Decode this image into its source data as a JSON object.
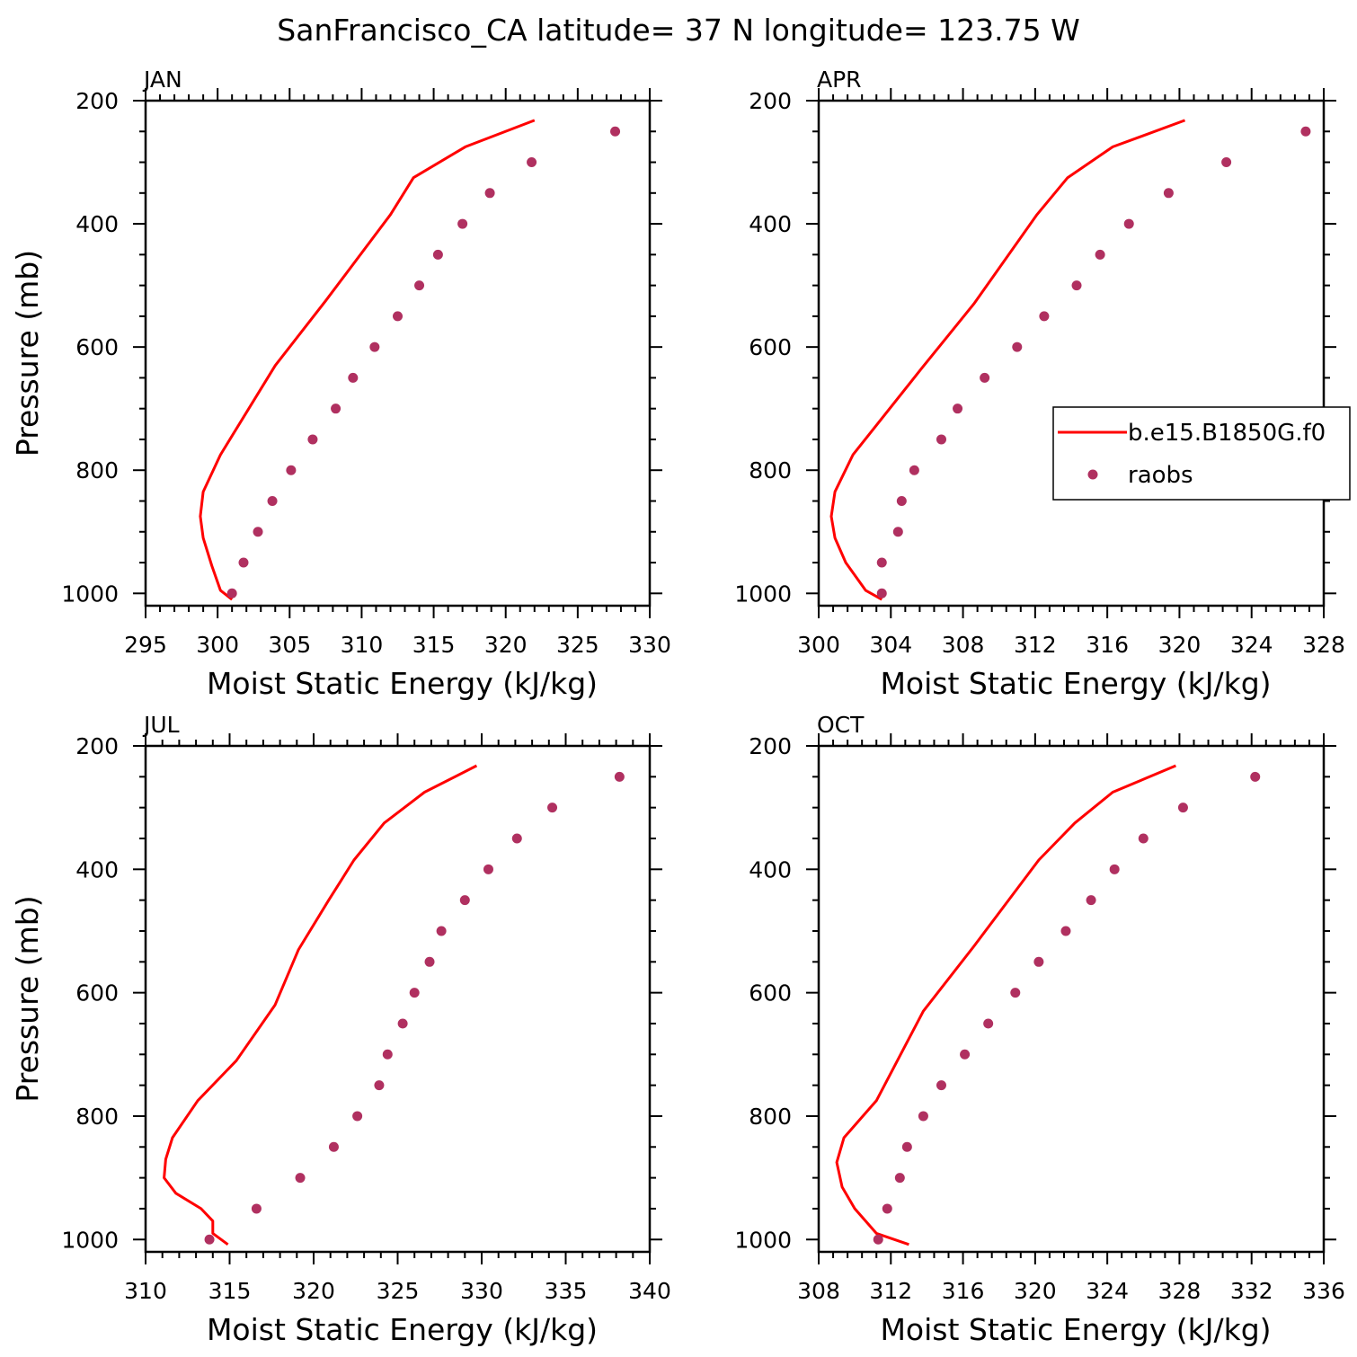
{
  "figure": {
    "title": "SanFrancisco_CA  latitude= 37 N longitude= 123.75 W"
  },
  "colors": {
    "model": "#ff0000",
    "raobs": "#b03060",
    "axis": "#000000"
  },
  "legend": {
    "model_label": "b.e15.B1850G.f0",
    "raobs_label": "raobs"
  },
  "chart_data": [
    {
      "type": "line",
      "panel": "JAN",
      "xlabel": "Moist Static Energy (kJ/kg)",
      "ylabel": "Pressure (mb)",
      "xlim": [
        295,
        330
      ],
      "xticks": [
        295,
        300,
        305,
        310,
        315,
        320,
        325,
        330
      ],
      "ylim": [
        200,
        1000
      ],
      "yticks": [
        200,
        400,
        600,
        800,
        1000
      ],
      "series": [
        {
          "name": "b.e15.B1850G.f0",
          "style": "line",
          "x": [
            322.0,
            317.2,
            313.6,
            312.0,
            307.5,
            304.0,
            300.2,
            299.0,
            298.8,
            299.0,
            299.6,
            300.2,
            301.0
          ],
          "y": [
            232,
            275,
            325,
            385,
            525,
            630,
            775,
            835,
            875,
            910,
            955,
            995,
            1010
          ]
        },
        {
          "name": "raobs",
          "style": "points",
          "x": [
            327.6,
            321.8,
            318.9,
            317.0,
            315.3,
            314.0,
            312.5,
            310.9,
            309.4,
            308.2,
            306.6,
            305.1,
            303.8,
            302.8,
            301.8,
            301.0
          ],
          "y": [
            250,
            300,
            350,
            400,
            450,
            500,
            550,
            600,
            650,
            700,
            750,
            800,
            850,
            900,
            950,
            1000
          ]
        }
      ]
    },
    {
      "type": "line",
      "panel": "APR",
      "xlabel": "Moist Static Energy (kJ/kg)",
      "ylabel": "",
      "xlim": [
        300,
        328
      ],
      "xticks": [
        300,
        304,
        308,
        312,
        316,
        320,
        324,
        328
      ],
      "ylim": [
        200,
        1000
      ],
      "yticks": [
        200,
        400,
        600,
        800,
        1000
      ],
      "legend": true,
      "series": [
        {
          "name": "b.e15.B1850G.f0",
          "style": "line",
          "x": [
            320.3,
            316.3,
            313.8,
            312.1,
            308.6,
            305.7,
            301.9,
            300.9,
            300.7,
            300.9,
            301.5,
            302.6,
            303.5
          ],
          "y": [
            232,
            275,
            325,
            385,
            530,
            635,
            775,
            835,
            875,
            910,
            950,
            995,
            1010
          ]
        },
        {
          "name": "raobs",
          "style": "points",
          "x": [
            327.0,
            322.6,
            319.4,
            317.2,
            315.6,
            314.3,
            312.5,
            311.0,
            309.2,
            307.7,
            306.8,
            305.3,
            304.6,
            304.4,
            303.5,
            303.5
          ],
          "y": [
            250,
            300,
            350,
            400,
            450,
            500,
            550,
            600,
            650,
            700,
            750,
            800,
            850,
            900,
            950,
            1000
          ]
        }
      ]
    },
    {
      "type": "line",
      "panel": "JUL",
      "xlabel": "Moist Static Energy (kJ/kg)",
      "ylabel": "Pressure (mb)",
      "xlim": [
        310,
        340
      ],
      "xticks": [
        310,
        315,
        320,
        325,
        330,
        335,
        340
      ],
      "ylim": [
        200,
        1000
      ],
      "yticks": [
        200,
        400,
        600,
        800,
        1000
      ],
      "series": [
        {
          "name": "b.e15.B1850G.f0",
          "style": "line",
          "x": [
            329.7,
            326.6,
            324.2,
            322.4,
            320.9,
            319.1,
            317.7,
            315.4,
            313.1,
            311.6,
            311.2,
            311.1,
            311.8,
            313.3,
            314.0,
            314.0,
            314.9
          ],
          "y": [
            232,
            275,
            325,
            385,
            450,
            530,
            620,
            710,
            775,
            835,
            870,
            900,
            925,
            950,
            970,
            990,
            1008
          ]
        },
        {
          "name": "raobs",
          "style": "points",
          "x": [
            338.2,
            334.2,
            332.1,
            330.4,
            329.0,
            327.6,
            326.9,
            326.0,
            325.3,
            324.4,
            323.9,
            322.6,
            321.2,
            319.2,
            316.6,
            313.8
          ],
          "y": [
            250,
            300,
            350,
            400,
            450,
            500,
            550,
            600,
            650,
            700,
            750,
            800,
            850,
            900,
            950,
            1000
          ]
        }
      ]
    },
    {
      "type": "line",
      "panel": "OCT",
      "xlabel": "Moist Static Energy (kJ/kg)",
      "ylabel": "",
      "xlim": [
        308,
        336
      ],
      "xticks": [
        308,
        312,
        316,
        320,
        324,
        328,
        332,
        336
      ],
      "ylim": [
        200,
        1000
      ],
      "yticks": [
        200,
        400,
        600,
        800,
        1000
      ],
      "series": [
        {
          "name": "b.e15.B1850G.f0",
          "style": "line",
          "x": [
            327.8,
            324.3,
            322.2,
            320.2,
            316.6,
            313.8,
            311.2,
            309.4,
            309.0,
            309.3,
            310.0,
            311.2,
            313.0
          ],
          "y": [
            232,
            275,
            325,
            385,
            525,
            630,
            775,
            835,
            875,
            915,
            950,
            990,
            1008
          ]
        },
        {
          "name": "raobs",
          "style": "points",
          "x": [
            332.2,
            328.2,
            326.0,
            324.4,
            323.1,
            321.7,
            320.2,
            318.9,
            317.4,
            316.1,
            314.8,
            313.8,
            312.9,
            312.5,
            311.8,
            311.3
          ],
          "y": [
            250,
            300,
            350,
            400,
            450,
            500,
            550,
            600,
            650,
            700,
            750,
            800,
            850,
            900,
            950,
            1000
          ]
        }
      ]
    }
  ]
}
